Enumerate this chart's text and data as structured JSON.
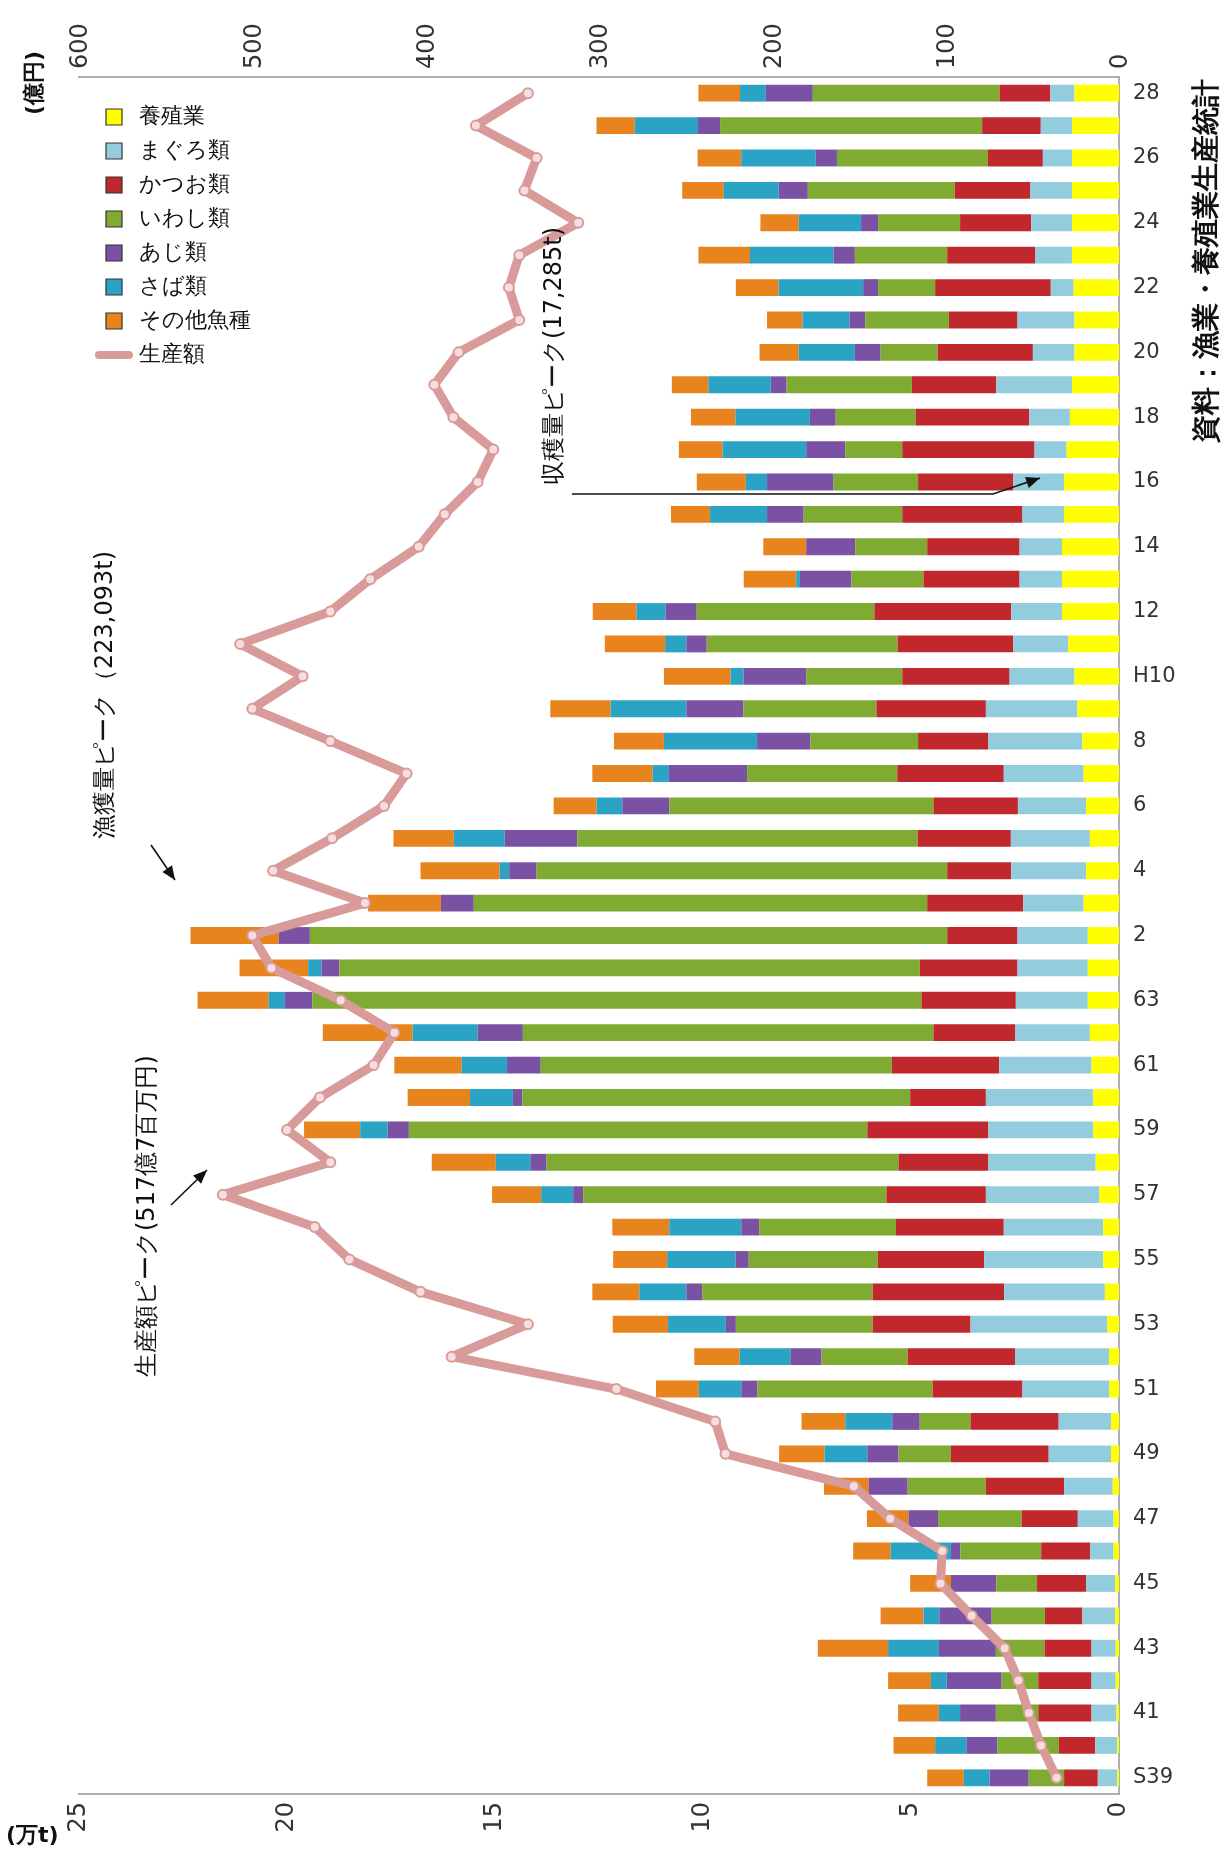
{
  "chart_data": {
    "type": "bar",
    "stacked": true,
    "orientation": "horizontal",
    "categories": [
      "28",
      null,
      "26",
      null,
      "24",
      null,
      "22",
      null,
      "20",
      null,
      "18",
      null,
      "16",
      null,
      "14",
      null,
      "12",
      null,
      "H10",
      null,
      "8",
      null,
      "6",
      null,
      "4",
      null,
      "2",
      null,
      "63",
      null,
      "61",
      null,
      "59",
      null,
      "57",
      null,
      "55",
      null,
      "53",
      null,
      "51",
      null,
      "49",
      null,
      "47",
      null,
      "45",
      null,
      "43",
      null,
      "41",
      null,
      "S39"
    ],
    "series": [
      {
        "name": "養殖業",
        "color": "#ffff00",
        "values": [
          1.07,
          1.13,
          1.13,
          1.13,
          1.13,
          1.13,
          1.09,
          1.07,
          1.07,
          1.13,
          1.18,
          1.26,
          1.32,
          1.32,
          1.37,
          1.37,
          1.37,
          1.22,
          1.07,
          1.0,
          0.88,
          0.85,
          0.79,
          0.7,
          0.79,
          0.85,
          0.75,
          0.75,
          0.75,
          0.7,
          0.66,
          0.62,
          0.62,
          0.56,
          0.47,
          0.38,
          0.38,
          0.34,
          0.28,
          0.24,
          0.23,
          0.19,
          0.19,
          0.15,
          0.13,
          0.13,
          0.09,
          0.09,
          0.08,
          0.08,
          0.06,
          0.04,
          0.04
        ]
      },
      {
        "name": "まぐろ類",
        "color": "#93cddd",
        "values": [
          0.58,
          0.75,
          0.7,
          1.0,
          0.98,
          0.88,
          0.55,
          1.37,
          1.0,
          1.82,
          0.98,
          0.77,
          1.22,
          1.0,
          1.02,
          1.02,
          1.22,
          1.32,
          1.56,
          2.2,
          2.26,
          1.92,
          1.64,
          1.9,
          1.8,
          1.45,
          1.69,
          1.69,
          1.73,
          1.79,
          2.22,
          2.58,
          2.52,
          2.58,
          2.73,
          2.39,
          2.86,
          2.42,
          3.29,
          2.26,
          2.09,
          1.26,
          1.5,
          1.17,
          0.86,
          0.56,
          0.7,
          0.79,
          0.58,
          0.58,
          0.6,
          0.53,
          0.47
        ]
      },
      {
        "name": "かつお類",
        "color": "#c0282d",
        "values": [
          1.22,
          1.41,
          1.32,
          1.82,
          1.71,
          2.12,
          2.78,
          1.65,
          2.29,
          2.03,
          2.73,
          3.18,
          2.29,
          2.89,
          2.22,
          2.31,
          3.29,
          2.78,
          2.58,
          2.63,
          1.69,
          2.56,
          2.03,
          2.24,
          1.54,
          2.31,
          1.69,
          2.35,
          2.27,
          1.97,
          2.58,
          1.82,
          2.91,
          2.16,
          2.39,
          2.59,
          2.56,
          3.16,
          2.35,
          2.58,
          2.16,
          2.12,
          2.35,
          1.88,
          1.35,
          1.18,
          1.18,
          0.9,
          1.13,
          1.28,
          1.28,
          0.88,
          0.81
        ]
      },
      {
        "name": "いわし類",
        "color": "#7fab32",
        "values": [
          4.49,
          6.3,
          3.63,
          3.53,
          1.97,
          2.22,
          1.37,
          2.01,
          1.37,
          3.01,
          1.92,
          1.37,
          2.03,
          2.37,
          1.73,
          1.73,
          4.27,
          4.59,
          2.31,
          3.2,
          2.59,
          3.61,
          6.35,
          8.18,
          9.87,
          10.9,
          15.32,
          13.95,
          14.64,
          9.87,
          8.44,
          9.32,
          11.02,
          8.46,
          7.29,
          3.29,
          3.1,
          4.1,
          3.29,
          2.07,
          4.21,
          1.22,
          1.26,
          1.88,
          2.01,
          1.94,
          0.98,
          1.28,
          1.17,
          0.88,
          1.02,
          1.47,
          0.85
        ]
      },
      {
        "name": "あじ類",
        "color": "#7b52a3",
        "values": [
          1.13,
          0.53,
          0.51,
          0.7,
          0.41,
          0.51,
          0.36,
          0.38,
          0.62,
          0.38,
          0.62,
          0.94,
          1.6,
          0.88,
          1.18,
          1.24,
          0.75,
          0.49,
          1.5,
          1.37,
          1.28,
          1.88,
          1.13,
          1.75,
          0.66,
          0.79,
          0.75,
          0.43,
          0.66,
          1.09,
          0.81,
          0.23,
          0.51,
          0.39,
          0.24,
          0.43,
          0.32,
          0.38,
          0.24,
          0.75,
          0.39,
          0.66,
          0.75,
          0.94,
          0.71,
          0.23,
          1.09,
          1.26,
          1.37,
          1.32,
          0.86,
          0.75,
          0.94
        ]
      },
      {
        "name": "さば類",
        "color": "#2ba3c4",
        "values": [
          0.62,
          1.52,
          1.79,
          1.32,
          1.5,
          2.01,
          2.03,
          1.13,
          1.35,
          1.5,
          1.79,
          2.01,
          0.51,
          1.37,
          0,
          0.09,
          0.7,
          0.51,
          0.32,
          1.82,
          2.24,
          0.39,
          0.62,
          1.22,
          0.23,
          0,
          0,
          0.32,
          0.39,
          1.56,
          1.09,
          1.03,
          0.66,
          0.83,
          0.77,
          1.73,
          1.64,
          1.13,
          1.39,
          1.22,
          1.02,
          1.13,
          1.03,
          null,
          null,
          1.45,
          null,
          0.38,
          1.22,
          0.38,
          0.51,
          0.75,
          0.62
        ]
      },
      {
        "name": "その他魚種",
        "color": "#e8841e",
        "values": [
          1.0,
          0.92,
          1.05,
          1.0,
          0.92,
          1.24,
          1.03,
          0.85,
          0.94,
          0.88,
          1.07,
          1.05,
          1.18,
          0.94,
          1.03,
          1.26,
          1.05,
          1.45,
          1.6,
          1.45,
          1.2,
          1.45,
          1.03,
          1.45,
          1.9,
          1.75,
          2.12,
          1.65,
          1.71,
          2.16,
          1.62,
          1.5,
          1.35,
          1.54,
          1.18,
          1.37,
          1.3,
          1.13,
          1.33,
          1.09,
          1.03,
          1.05,
          1.09,
          1.07,
          1.0,
          0.9,
          0.98,
          1.03,
          1.69,
          1.03,
          0.98,
          1.0,
          0.88
        ]
      },
      {
        "name": "生産額",
        "color": "#d99a9a",
        "type": "line",
        "axis": "x2",
        "values": [
          341,
          371,
          336,
          343,
          312,
          346,
          352,
          346,
          381,
          395,
          384,
          361,
          370,
          389,
          404,
          432,
          455,
          507,
          471,
          500,
          455,
          411,
          424,
          454,
          488,
          435,
          500,
          489,
          449,
          418,
          430,
          461,
          480,
          455,
          517,
          464,
          444,
          403,
          341,
          385,
          290,
          233,
          227,
          153,
          132,
          102,
          103,
          85,
          66,
          58,
          52,
          45,
          36
        ]
      }
    ],
    "xlim": [
      25,
      0
    ],
    "xticks": [
      25,
      20,
      15,
      10,
      5,
      0
    ],
    "xlabel": "(万t)",
    "x2lim": [
      600,
      0
    ],
    "x2ticks": [
      600,
      500,
      400,
      300,
      200,
      100,
      0
    ],
    "x2label": "(億円)",
    "grid": false,
    "legend": "top left",
    "marker": "circle",
    "annotations": [
      "生産額ピーク(517億7百万円)",
      "漁獲量ピーク（223,093t)",
      "収穫量ピーク(17,285t)",
      "資料：漁業・養殖業生産統計"
    ]
  }
}
